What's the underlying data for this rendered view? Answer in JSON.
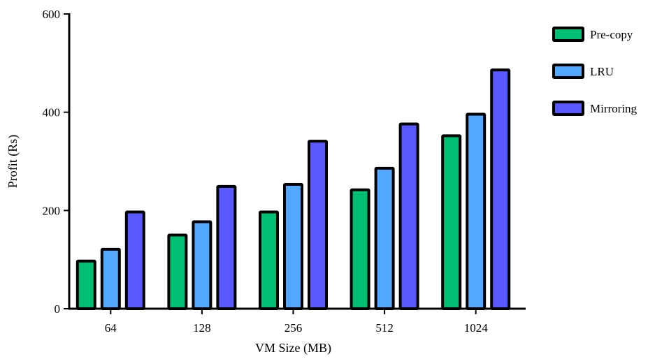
{
  "chart_data": {
    "type": "bar",
    "xlabel": "VM Size (MB)",
    "ylabel": "Profit (Rs)",
    "ylim": [
      0,
      600
    ],
    "yticks": [
      0,
      200,
      400,
      600
    ],
    "categories": [
      "64",
      "128",
      "256",
      "512",
      "1024"
    ],
    "series": [
      {
        "name": "Pre-copy",
        "color": "#00bf72",
        "values": [
          97,
          150,
          197,
          242,
          352
        ]
      },
      {
        "name": "LRU",
        "color": "#52a8ff",
        "values": [
          121,
          177,
          253,
          286,
          396
        ]
      },
      {
        "name": "Mirroring",
        "color": "#5a59ff",
        "values": [
          197,
          249,
          341,
          376,
          486
        ]
      }
    ],
    "legend": "right",
    "grid": false
  }
}
